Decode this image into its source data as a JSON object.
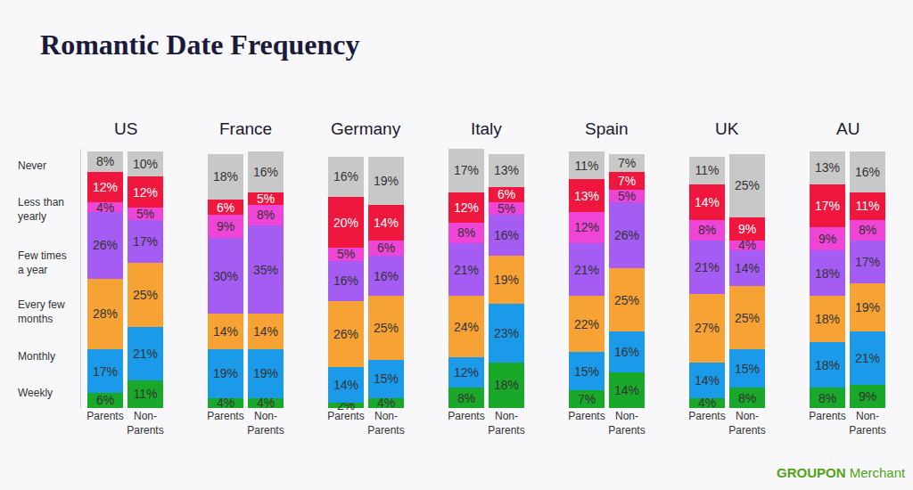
{
  "chart_data": {
    "type": "bar",
    "title": "Romantic Date Frequency",
    "stacked": true,
    "data_labels": true,
    "tick_labels": "x",
    "groups": [
      "US",
      "France",
      "Germany",
      "Italy",
      "Spain",
      "UK",
      "AU"
    ],
    "categories": [
      "Parents",
      "Non-Parents",
      "Parents",
      "Non-Parents",
      "Parents",
      "Non-Parents",
      "Parents",
      "Non-Parents",
      "Parents",
      "Non-Parents",
      "Parents",
      "Non-Parents",
      "Parents",
      "Non-Parents"
    ],
    "ylim": [
      0,
      102
    ],
    "annotations": [
      "GROUPON Merchant"
    ],
    "series": [
      {
        "name": "Weekly",
        "color": "#1aa82a",
        "values": [
          6,
          11,
          4,
          4,
          2,
          4,
          8,
          18,
          7,
          14,
          4,
          8,
          8,
          9
        ],
        "value_labels": [
          "6%",
          "11%",
          "4%",
          "4%",
          "2%",
          "4%",
          "8%",
          "18%",
          "7%",
          "14%",
          "4%",
          "8%",
          "8%",
          "9%"
        ]
      },
      {
        "name": "Monthly",
        "color": "#1a9ae8",
        "values": [
          17,
          21,
          19,
          19,
          14,
          15,
          12,
          23,
          15,
          16,
          14,
          15,
          18,
          21
        ],
        "value_labels": [
          "17%",
          "21%",
          "19%",
          "19%",
          "14%",
          "15%",
          "12%",
          "23%",
          "15%",
          "16%",
          "14%",
          "15%",
          "18%",
          "21%"
        ]
      },
      {
        "name": "Every few months",
        "color": "#f6a234",
        "values": [
          28,
          25,
          14,
          14,
          26,
          25,
          24,
          19,
          22,
          25,
          27,
          25,
          18,
          19
        ],
        "value_labels": [
          "28%",
          "25%",
          "14%",
          "14%",
          "26%",
          "25%",
          "24%",
          "19%",
          "22%",
          "25%",
          "27%",
          "25%",
          "18%",
          "19%"
        ]
      },
      {
        "name": "Few times a year",
        "color": "#a45cf2",
        "values": [
          26,
          17,
          30,
          35,
          16,
          16,
          21,
          16,
          21,
          26,
          21,
          14,
          18,
          17
        ],
        "value_labels": [
          "26%",
          "17%",
          "30%",
          "35%",
          "16%",
          "16%",
          "21%",
          "16%",
          "21%",
          "26%",
          "21%",
          "14%",
          "18%",
          "17%"
        ]
      },
      {
        "name": "Less than yearly",
        "color": "#ee45d6",
        "values": [
          4,
          5,
          9,
          8,
          5,
          6,
          8,
          5,
          12,
          5,
          8,
          4,
          9,
          8
        ],
        "value_labels": [
          "4%",
          "5%",
          "9%",
          "8%",
          "5%",
          "6%",
          "8%",
          "5%",
          "12%",
          "5%",
          "8%",
          "4%",
          "9%",
          "8%"
        ]
      },
      {
        "name": "Never",
        "color": "#f0173f",
        "values": [
          12,
          12,
          6,
          5,
          20,
          14,
          12,
          6,
          13,
          7,
          14,
          9,
          17,
          11
        ],
        "value_labels": [
          "12%",
          "12%",
          "6%",
          "5%",
          "20%",
          "14%",
          "12%",
          "6%",
          "13%",
          "7%",
          "14%",
          "9%",
          "17%",
          "11%"
        ]
      },
      {
        "name": null,
        "color": "#c8c8c8",
        "values": [
          8,
          10,
          18,
          16,
          16,
          19,
          17,
          13,
          11,
          7,
          11,
          25,
          13,
          16
        ],
        "value_labels": [
          "8%",
          "10%",
          "18%",
          "16%",
          "16%",
          "19%",
          "17%",
          "13%",
          "11%",
          "7%",
          "11%",
          "25%",
          "13%",
          "16%"
        ]
      }
    ]
  }
}
